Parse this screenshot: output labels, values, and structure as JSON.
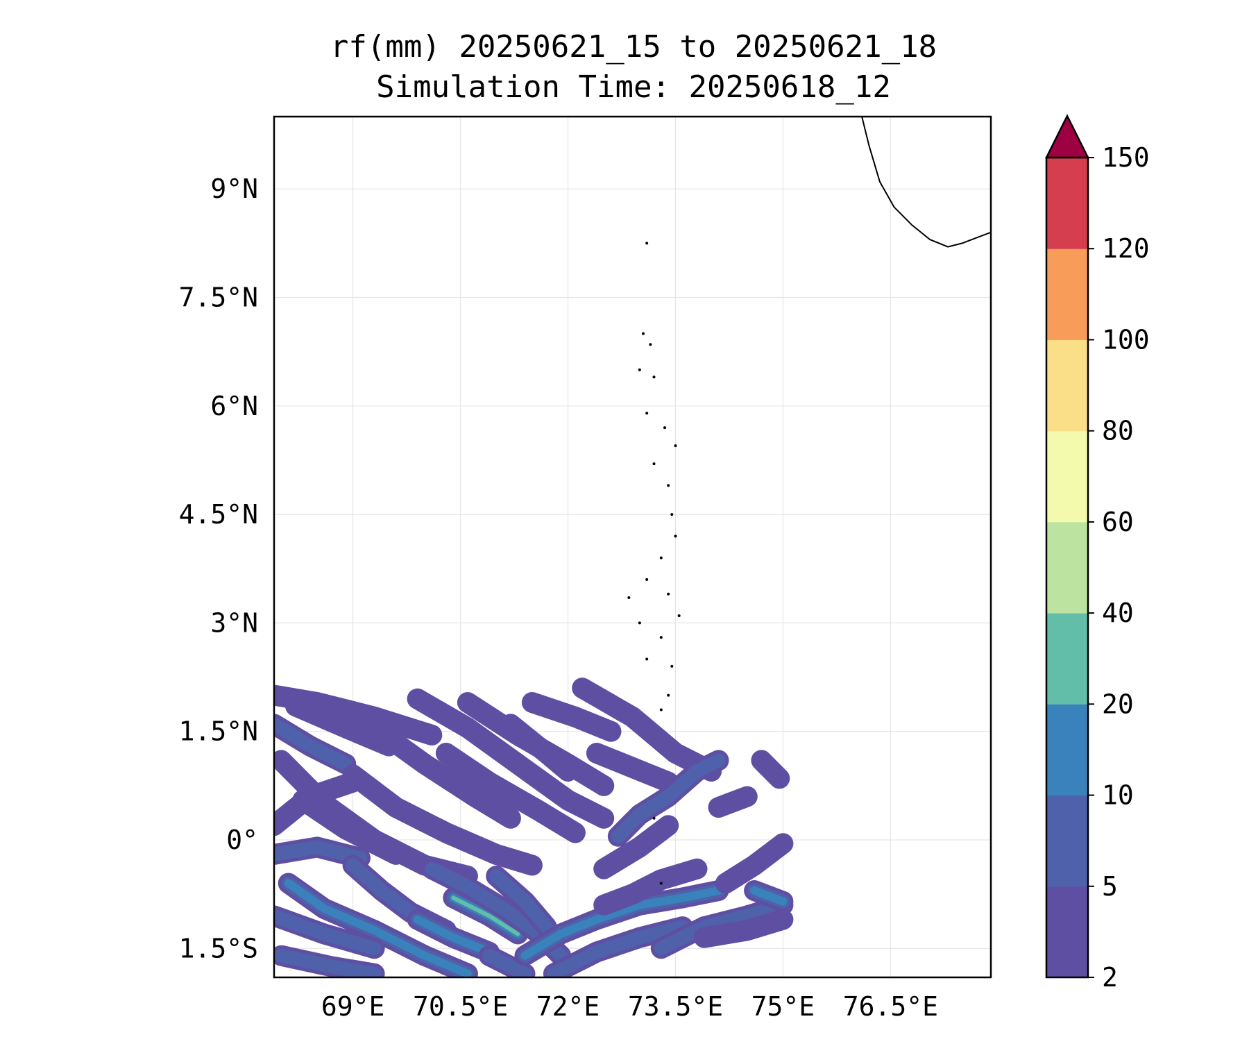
{
  "chart_data": {
    "type": "heatmap",
    "title_line1": "rf(mm) 20250621_15 to 20250621_18",
    "title_line2": "Simulation Time: 20250618_12",
    "xlabel": "",
    "ylabel": "",
    "xlim": [
      67.9,
      77.9
    ],
    "ylim": [
      -1.9,
      10.0
    ],
    "grid": true,
    "x_ticks": [
      {
        "value": 69.0,
        "label": "69°E"
      },
      {
        "value": 70.5,
        "label": "70.5°E"
      },
      {
        "value": 72.0,
        "label": "72°E"
      },
      {
        "value": 73.5,
        "label": "73.5°E"
      },
      {
        "value": 75.0,
        "label": "75°E"
      },
      {
        "value": 76.5,
        "label": "76.5°E"
      }
    ],
    "y_ticks": [
      {
        "value": 9.0,
        "label": "9°N"
      },
      {
        "value": 7.5,
        "label": "7.5°N"
      },
      {
        "value": 6.0,
        "label": "6°N"
      },
      {
        "value": 4.5,
        "label": "4.5°N"
      },
      {
        "value": 3.0,
        "label": "3°N"
      },
      {
        "value": 1.5,
        "label": "1.5°N"
      },
      {
        "value": 0.0,
        "label": "0°"
      },
      {
        "value": -1.5,
        "label": "1.5°S"
      }
    ],
    "colorbar": {
      "levels": [
        2,
        5,
        10,
        20,
        40,
        60,
        80,
        100,
        120,
        150
      ],
      "labels": [
        "2",
        "5",
        "10",
        "20",
        "40",
        "60",
        "80",
        "100",
        "120",
        "150"
      ],
      "colors": [
        "#5e4fa2",
        "#4f61aa",
        "#3a82bb",
        "#62bea8",
        "#bde3a1",
        "#f3faad",
        "#fbde88",
        "#f89c59",
        "#d53e4f"
      ],
      "extend_color": "#9e0142",
      "extend": "max"
    },
    "coastline": [
      [
        76.1,
        10.0
      ],
      [
        76.2,
        9.6
      ],
      [
        76.35,
        9.1
      ],
      [
        76.55,
        8.75
      ],
      [
        76.8,
        8.5
      ],
      [
        77.05,
        8.3
      ],
      [
        77.3,
        8.2
      ],
      [
        77.5,
        8.25
      ],
      [
        77.9,
        8.4
      ]
    ],
    "islands": [
      [
        73.1,
        8.25
      ],
      [
        73.05,
        7.0
      ],
      [
        73.15,
        6.85
      ],
      [
        73.0,
        6.5
      ],
      [
        73.2,
        6.4
      ],
      [
        73.1,
        5.9
      ],
      [
        73.35,
        5.7
      ],
      [
        73.5,
        5.45
      ],
      [
        73.2,
        5.2
      ],
      [
        73.4,
        4.9
      ],
      [
        73.45,
        4.5
      ],
      [
        73.5,
        4.2
      ],
      [
        73.3,
        3.9
      ],
      [
        73.1,
        3.6
      ],
      [
        73.4,
        3.4
      ],
      [
        73.0,
        3.0
      ],
      [
        73.3,
        2.8
      ],
      [
        73.1,
        2.5
      ],
      [
        73.4,
        2.0
      ],
      [
        73.2,
        0.3
      ],
      [
        73.3,
        -0.6
      ],
      [
        72.85,
        3.35
      ],
      [
        73.55,
        3.1
      ],
      [
        73.45,
        2.4
      ],
      [
        73.3,
        1.8
      ]
    ],
    "rain_bands": [
      {
        "pts": [
          [
            67.9,
            2.0
          ],
          [
            68.5,
            1.9
          ],
          [
            69.3,
            1.7
          ],
          [
            70.1,
            1.45
          ]
        ],
        "level": 0
      },
      {
        "pts": [
          [
            67.9,
            1.6
          ],
          [
            68.4,
            1.3
          ],
          [
            68.9,
            1.05
          ]
        ],
        "level": 1
      },
      {
        "pts": [
          [
            68.2,
            1.85
          ],
          [
            68.9,
            1.55
          ],
          [
            69.5,
            1.3
          ]
        ],
        "level": 0
      },
      {
        "pts": [
          [
            69.3,
            1.55
          ],
          [
            70.0,
            1.05
          ],
          [
            70.7,
            0.6
          ],
          [
            71.2,
            0.3
          ]
        ],
        "level": 0
      },
      {
        "pts": [
          [
            69.9,
            1.95
          ],
          [
            70.6,
            1.55
          ],
          [
            71.3,
            1.05
          ],
          [
            72.0,
            0.55
          ],
          [
            72.5,
            0.3
          ]
        ],
        "level": 0
      },
      {
        "pts": [
          [
            70.6,
            1.9
          ],
          [
            71.3,
            1.45
          ],
          [
            72.0,
            1.05
          ],
          [
            72.5,
            0.75
          ]
        ],
        "level": 0
      },
      {
        "pts": [
          [
            71.5,
            1.9
          ],
          [
            72.1,
            1.7
          ],
          [
            72.6,
            1.5
          ]
        ],
        "level": 0
      },
      {
        "pts": [
          [
            72.2,
            2.1
          ],
          [
            72.9,
            1.7
          ],
          [
            73.5,
            1.2
          ],
          [
            74.0,
            0.95
          ]
        ],
        "level": 0
      },
      {
        "pts": [
          [
            72.4,
            1.2
          ],
          [
            72.9,
            1.0
          ],
          [
            73.4,
            0.8
          ]
        ],
        "level": 0
      },
      {
        "pts": [
          [
            71.2,
            1.6
          ],
          [
            71.7,
            1.2
          ],
          [
            72.0,
            0.95
          ]
        ],
        "level": 0
      },
      {
        "pts": [
          [
            67.9,
            0.2
          ],
          [
            68.4,
            0.6
          ],
          [
            69.0,
            0.8
          ]
        ],
        "level": 0
      },
      {
        "pts": [
          [
            68.0,
            1.1
          ],
          [
            68.6,
            0.5
          ],
          [
            69.3,
            0.0
          ],
          [
            70.0,
            -0.35
          ],
          [
            70.6,
            -0.5
          ]
        ],
        "level": 0
      },
      {
        "pts": [
          [
            69.0,
            0.9
          ],
          [
            69.6,
            0.45
          ],
          [
            70.3,
            0.1
          ],
          [
            71.0,
            -0.2
          ],
          [
            71.5,
            -0.35
          ]
        ],
        "level": 0
      },
      {
        "pts": [
          [
            68.3,
            0.55
          ],
          [
            68.9,
            0.15
          ],
          [
            69.6,
            -0.2
          ]
        ],
        "level": 0
      },
      {
        "pts": [
          [
            70.3,
            1.2
          ],
          [
            70.9,
            0.8
          ],
          [
            71.6,
            0.4
          ],
          [
            72.1,
            0.1
          ]
        ],
        "level": 0
      },
      {
        "pts": [
          [
            72.7,
            0.05
          ],
          [
            73.0,
            0.35
          ],
          [
            73.4,
            0.6
          ],
          [
            73.8,
            0.95
          ],
          [
            74.1,
            1.1
          ]
        ],
        "level": 1
      },
      {
        "pts": [
          [
            72.5,
            -0.4
          ],
          [
            73.0,
            -0.1
          ],
          [
            73.4,
            0.2
          ]
        ],
        "level": 0
      },
      {
        "pts": [
          [
            74.1,
            0.45
          ],
          [
            74.5,
            0.6
          ]
        ],
        "level": 0
      },
      {
        "pts": [
          [
            74.7,
            1.1
          ],
          [
            74.95,
            0.85
          ]
        ],
        "level": 0
      },
      {
        "pts": [
          [
            67.9,
            -0.2
          ],
          [
            68.5,
            -0.1
          ],
          [
            69.1,
            -0.25
          ]
        ],
        "level": 1
      },
      {
        "pts": [
          [
            68.1,
            -0.6
          ],
          [
            68.6,
            -0.95
          ],
          [
            69.3,
            -1.25
          ],
          [
            70.0,
            -1.6
          ],
          [
            70.6,
            -1.85
          ]
        ],
        "level": 2
      },
      {
        "pts": [
          [
            67.9,
            -1.05
          ],
          [
            68.6,
            -1.3
          ],
          [
            69.3,
            -1.5
          ]
        ],
        "level": 1
      },
      {
        "pts": [
          [
            68.0,
            -1.6
          ],
          [
            68.7,
            -1.75
          ],
          [
            69.3,
            -1.85
          ]
        ],
        "level": 1
      },
      {
        "pts": [
          [
            69.0,
            -0.35
          ],
          [
            69.4,
            -0.7
          ],
          [
            69.8,
            -1.0
          ],
          [
            70.3,
            -1.25
          ]
        ],
        "level": 1
      },
      {
        "pts": [
          [
            70.4,
            -0.8
          ],
          [
            70.9,
            -1.05
          ],
          [
            71.3,
            -1.3
          ]
        ],
        "level": 3
      },
      {
        "pts": [
          [
            69.9,
            -1.1
          ],
          [
            70.4,
            -1.35
          ],
          [
            70.9,
            -1.55
          ]
        ],
        "level": 2
      },
      {
        "pts": [
          [
            70.1,
            -0.4
          ],
          [
            70.6,
            -0.65
          ],
          [
            71.1,
            -0.95
          ],
          [
            71.6,
            -1.3
          ],
          [
            71.9,
            -1.6
          ]
        ],
        "level": 1
      },
      {
        "pts": [
          [
            71.0,
            -0.5
          ],
          [
            71.4,
            -0.85
          ],
          [
            71.7,
            -1.2
          ]
        ],
        "level": 1
      },
      {
        "pts": [
          [
            70.9,
            -1.6
          ],
          [
            71.4,
            -1.85
          ]
        ],
        "level": 1
      },
      {
        "pts": [
          [
            71.4,
            -1.6
          ],
          [
            71.9,
            -1.3
          ],
          [
            72.4,
            -1.1
          ],
          [
            73.0,
            -0.9
          ],
          [
            73.6,
            -0.8
          ],
          [
            74.1,
            -0.7
          ]
        ],
        "level": 2
      },
      {
        "pts": [
          [
            71.8,
            -1.85
          ],
          [
            72.4,
            -1.55
          ],
          [
            73.0,
            -1.35
          ],
          [
            73.6,
            -1.2
          ]
        ],
        "level": 1
      },
      {
        "pts": [
          [
            72.5,
            -0.9
          ],
          [
            72.9,
            -0.75
          ],
          [
            73.3,
            -0.55
          ],
          [
            73.8,
            -0.4
          ]
        ],
        "level": 0
      },
      {
        "pts": [
          [
            73.3,
            -1.5
          ],
          [
            73.9,
            -1.2
          ],
          [
            74.5,
            -1.05
          ],
          [
            75.0,
            -0.9
          ]
        ],
        "level": 1
      },
      {
        "pts": [
          [
            73.9,
            -1.35
          ],
          [
            74.5,
            -1.25
          ],
          [
            75.0,
            -1.1
          ]
        ],
        "level": 0
      },
      {
        "pts": [
          [
            74.2,
            -0.6
          ],
          [
            74.6,
            -0.35
          ],
          [
            75.0,
            -0.05
          ]
        ],
        "level": 0
      },
      {
        "pts": [
          [
            74.6,
            -0.7
          ],
          [
            75.0,
            -0.85
          ]
        ],
        "level": 2
      }
    ]
  }
}
